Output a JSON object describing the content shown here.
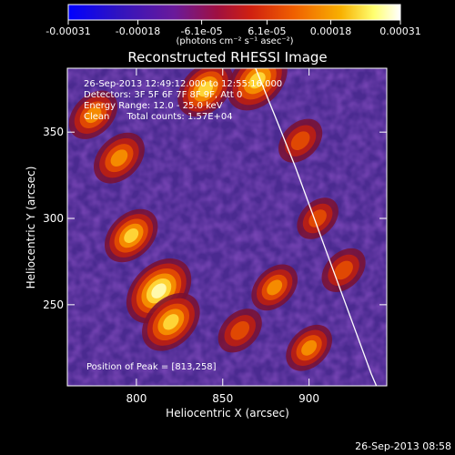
{
  "colorbar": {
    "ticks": [
      "-0.00031",
      "-0.00018",
      "-6.1e-05",
      "6.1e-05",
      "0.00018",
      "0.00031"
    ],
    "tick_values": [
      -0.00031,
      -0.00018,
      -6.1e-05,
      6.1e-05,
      0.00018,
      0.00031
    ],
    "range": [
      -0.00031,
      0.00031
    ],
    "units": "(photons cm⁻² s⁻¹ asec⁻²)",
    "colors": [
      "#0000ff",
      "#3b0fb0",
      "#6a1a9a",
      "#c0102a",
      "#e03010",
      "#f07000",
      "#f8b000",
      "#ffff60",
      "#ffffff"
    ]
  },
  "chart_data": {
    "type": "heatmap",
    "title": "Reconstructed RHESSI Image",
    "xlabel": "Heliocentric X (arcsec)",
    "ylabel": "Heliocentric Y (arcsec)",
    "xlim": [
      760,
      945
    ],
    "ylim": [
      203,
      387
    ],
    "x_ticks": [
      800,
      850,
      900
    ],
    "y_ticks": [
      250,
      300,
      350
    ],
    "grid": false,
    "annotations": [
      "26-Sep-2013 12:49:12.000 to 12:55:16.000",
      "Detectors: 3F 5F 6F 7F 8F 9F, Att 0",
      "Energy Range: 12.0 - 25.0 keV",
      "Clean      Total counts: 1.57E+04"
    ],
    "peak_label": "Position of Peak = [813,258]",
    "peak": [
      813,
      258
    ],
    "limb_curve": [
      [
        869,
        387
      ],
      [
        880,
        360
      ],
      [
        892,
        330
      ],
      [
        903,
        300
      ],
      [
        914,
        270
      ],
      [
        925,
        240
      ],
      [
        936,
        210
      ],
      [
        939,
        203
      ]
    ],
    "bright_sources": [
      {
        "x": 813,
        "y": 258,
        "level": 1.0
      },
      {
        "x": 797,
        "y": 290,
        "level": 0.75
      },
      {
        "x": 820,
        "y": 240,
        "level": 0.85
      },
      {
        "x": 790,
        "y": 335,
        "level": 0.7
      },
      {
        "x": 775,
        "y": 360,
        "level": 0.65
      },
      {
        "x": 840,
        "y": 375,
        "level": 0.8
      },
      {
        "x": 870,
        "y": 380,
        "level": 0.9
      },
      {
        "x": 895,
        "y": 345,
        "level": 0.55
      },
      {
        "x": 905,
        "y": 300,
        "level": 0.5
      },
      {
        "x": 920,
        "y": 270,
        "level": 0.55
      },
      {
        "x": 880,
        "y": 260,
        "level": 0.6
      },
      {
        "x": 900,
        "y": 225,
        "level": 0.6
      },
      {
        "x": 860,
        "y": 235,
        "level": 0.55
      }
    ]
  },
  "footer": {
    "timestamp": "26-Sep-2013 08:58"
  }
}
